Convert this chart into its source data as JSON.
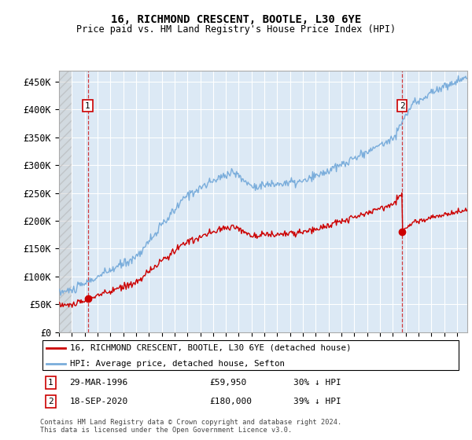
{
  "title": "16, RICHMOND CRESCENT, BOOTLE, L30 6YE",
  "subtitle": "Price paid vs. HM Land Registry's House Price Index (HPI)",
  "ylim": [
    0,
    470000
  ],
  "yticks": [
    0,
    50000,
    100000,
    150000,
    200000,
    250000,
    300000,
    350000,
    400000,
    450000
  ],
  "ytick_labels": [
    "£0",
    "£50K",
    "£100K",
    "£150K",
    "£200K",
    "£250K",
    "£300K",
    "£350K",
    "£400K",
    "£450K"
  ],
  "xlim_start": 1994.0,
  "xlim_end": 2025.8,
  "hpi_color": "#7aaddb",
  "price_color": "#cc0000",
  "transaction1_date": 1996.24,
  "transaction1_price": 59950,
  "transaction2_date": 2020.72,
  "transaction2_price": 180000,
  "legend_line1": "16, RICHMOND CRESCENT, BOOTLE, L30 6YE (detached house)",
  "legend_line2": "HPI: Average price, detached house, Sefton",
  "footnote1": "Contains HM Land Registry data © Crown copyright and database right 2024.",
  "footnote2": "This data is licensed under the Open Government Licence v3.0.",
  "bg_color": "#dce9f5",
  "grid_color": "#ffffff"
}
